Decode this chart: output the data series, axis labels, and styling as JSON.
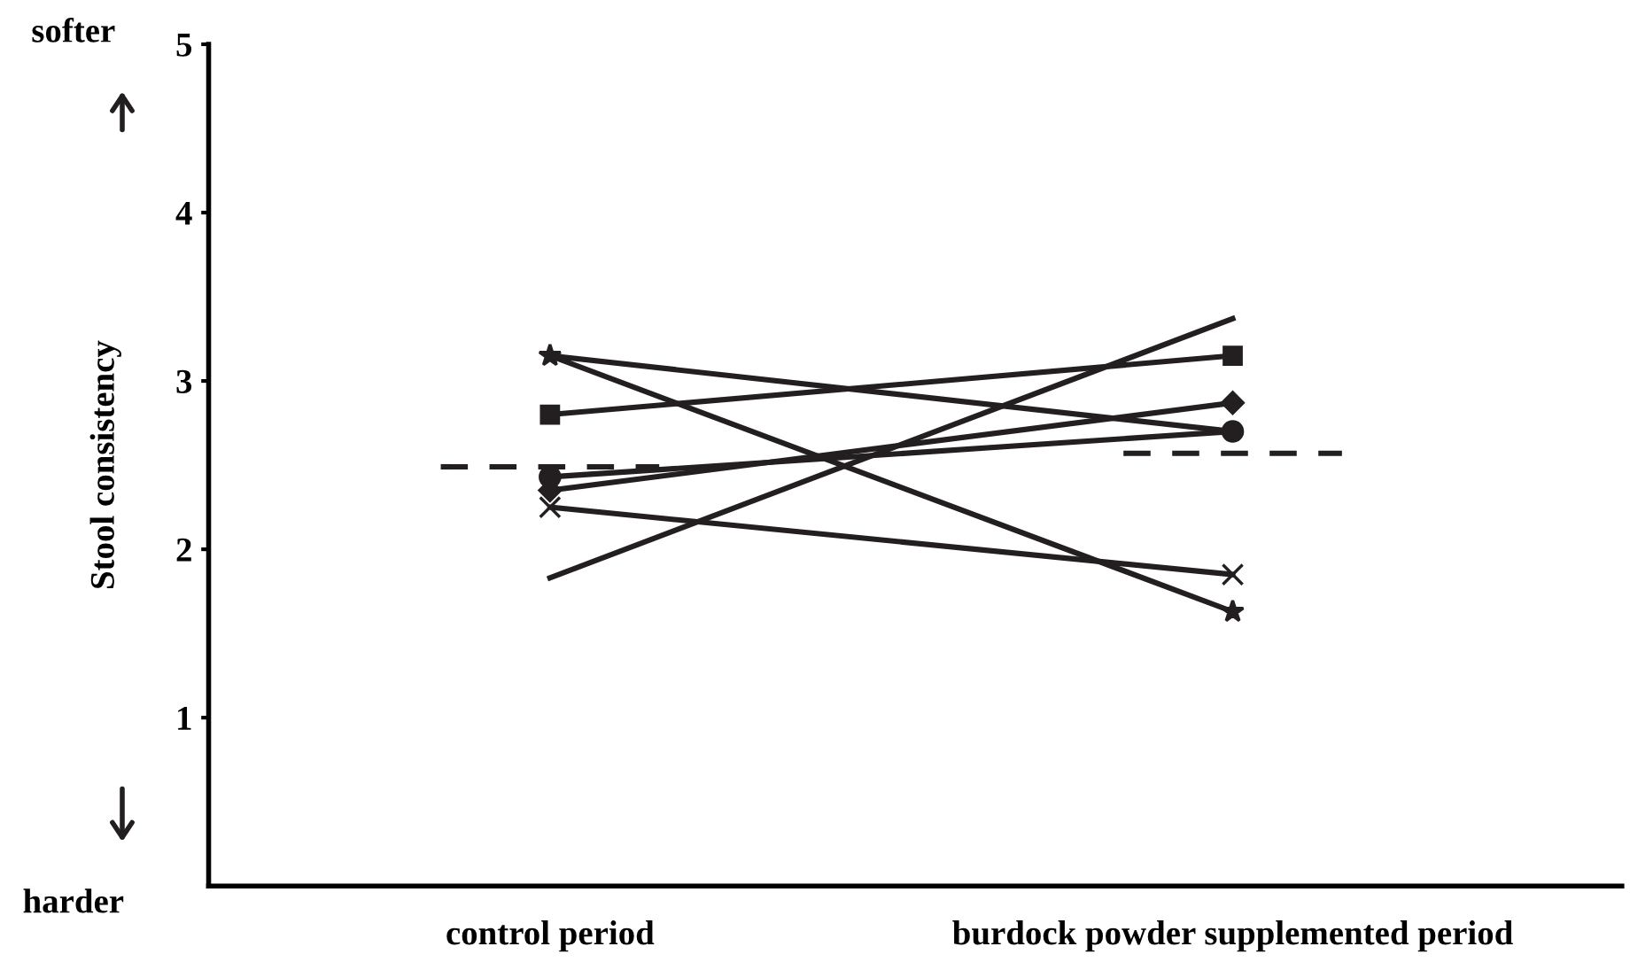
{
  "chart_data": {
    "type": "line",
    "ylabel": "Stool consistency",
    "categories": [
      "control period",
      "burdock powder supplemented period"
    ],
    "ylim": [
      0,
      5
    ],
    "yticks": [
      1,
      2,
      3,
      4,
      5
    ],
    "grid": false,
    "legend": false,
    "series": [
      {
        "color": "#231f20",
        "marker": "star",
        "values": [
          3.15,
          1.63
        ]
      },
      {
        "color": "#231f20",
        "marker": "square",
        "values": [
          2.8,
          3.15
        ]
      },
      {
        "color": "#231f20",
        "marker": "circle",
        "values": [
          2.43,
          2.7
        ]
      },
      {
        "color": "#231f20",
        "marker": "diamond",
        "values": [
          2.35,
          2.87
        ]
      },
      {
        "color": "#231f20",
        "marker": "cross",
        "values": [
          2.25,
          1.85
        ]
      },
      {
        "color": "#231f20",
        "marker": "none",
        "values": [
          1.83,
          3.37
        ]
      },
      {
        "color": "#231f20",
        "marker": "none",
        "values": [
          3.15,
          2.7
        ]
      }
    ],
    "ref_lines": [
      {
        "axis": "y",
        "value": 2.49,
        "line_style": "dashed",
        "color": "#231f20"
      },
      {
        "axis": "y",
        "value": 2.57,
        "line_style": "dashed",
        "color": "#231f20"
      }
    ],
    "annotations": [
      "softer",
      "harder"
    ]
  }
}
